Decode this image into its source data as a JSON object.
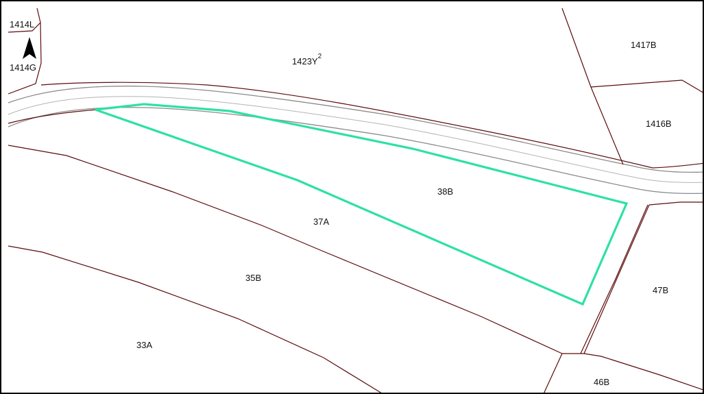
{
  "map": {
    "colors": {
      "parcel_boundary": "#5b0b0b",
      "road": "#8a8a8a",
      "selected_parcel": "#2ee0a6",
      "background": "#ffffff"
    },
    "north_arrow": {
      "icon": "north-arrow-icon"
    },
    "parcel_labels": {
      "p1414l": "1414L",
      "p1414g": "1414G",
      "p1423y": "1423Y",
      "p1423y_sup": "2",
      "p1417b": "1417B",
      "p1416b": "1416B",
      "p38b": "38B",
      "p37a": "37A",
      "p35b": "35B",
      "p33a": "33A",
      "p47b": "47B",
      "p46b": "46B"
    },
    "selected_parcel_label": "38B"
  }
}
